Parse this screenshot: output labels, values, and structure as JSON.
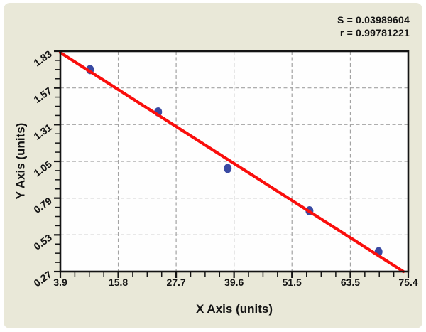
{
  "annotation": {
    "s_label": "S = 0.03989604",
    "r_label": "r = 0.99781221"
  },
  "chart_data": {
    "type": "scatter",
    "title": "",
    "xlabel": "X Axis (units)",
    "ylabel": "Y Axis (units)",
    "xlim": [
      3.9,
      75.4
    ],
    "ylim": [
      0.27,
      1.83
    ],
    "x_ticks": [
      3.9,
      15.8,
      27.7,
      39.6,
      51.5,
      63.5,
      75.4
    ],
    "y_ticks": [
      0.27,
      0.53,
      0.79,
      1.05,
      1.31,
      1.57,
      1.83
    ],
    "minor_tick_divisions": 4,
    "grid": "dashed lines at major ticks, tick labels on bottom and left, y tick labels angled",
    "legend_position": "none",
    "series": [
      {
        "name": "data-points",
        "type": "scatter",
        "points": [
          [
            10.0,
            1.7
          ],
          [
            24.0,
            1.4
          ],
          [
            38.3,
            1.0
          ],
          [
            55.1,
            0.7
          ],
          [
            69.3,
            0.41
          ]
        ]
      },
      {
        "name": "regression-line",
        "type": "line",
        "points": [
          [
            3.9,
            1.82
          ],
          [
            74.4,
            0.27
          ]
        ]
      }
    ],
    "stats": {
      "S": 0.03989604,
      "r": 0.99781221
    },
    "colors": {
      "panel_bg": "#e9e8d8",
      "plot_bg": "#fefefe",
      "axis": "#141414",
      "text": "#141414",
      "grid": "#a3a3a3",
      "point": "#3a4aa3",
      "line": "#fa0e0c"
    }
  }
}
